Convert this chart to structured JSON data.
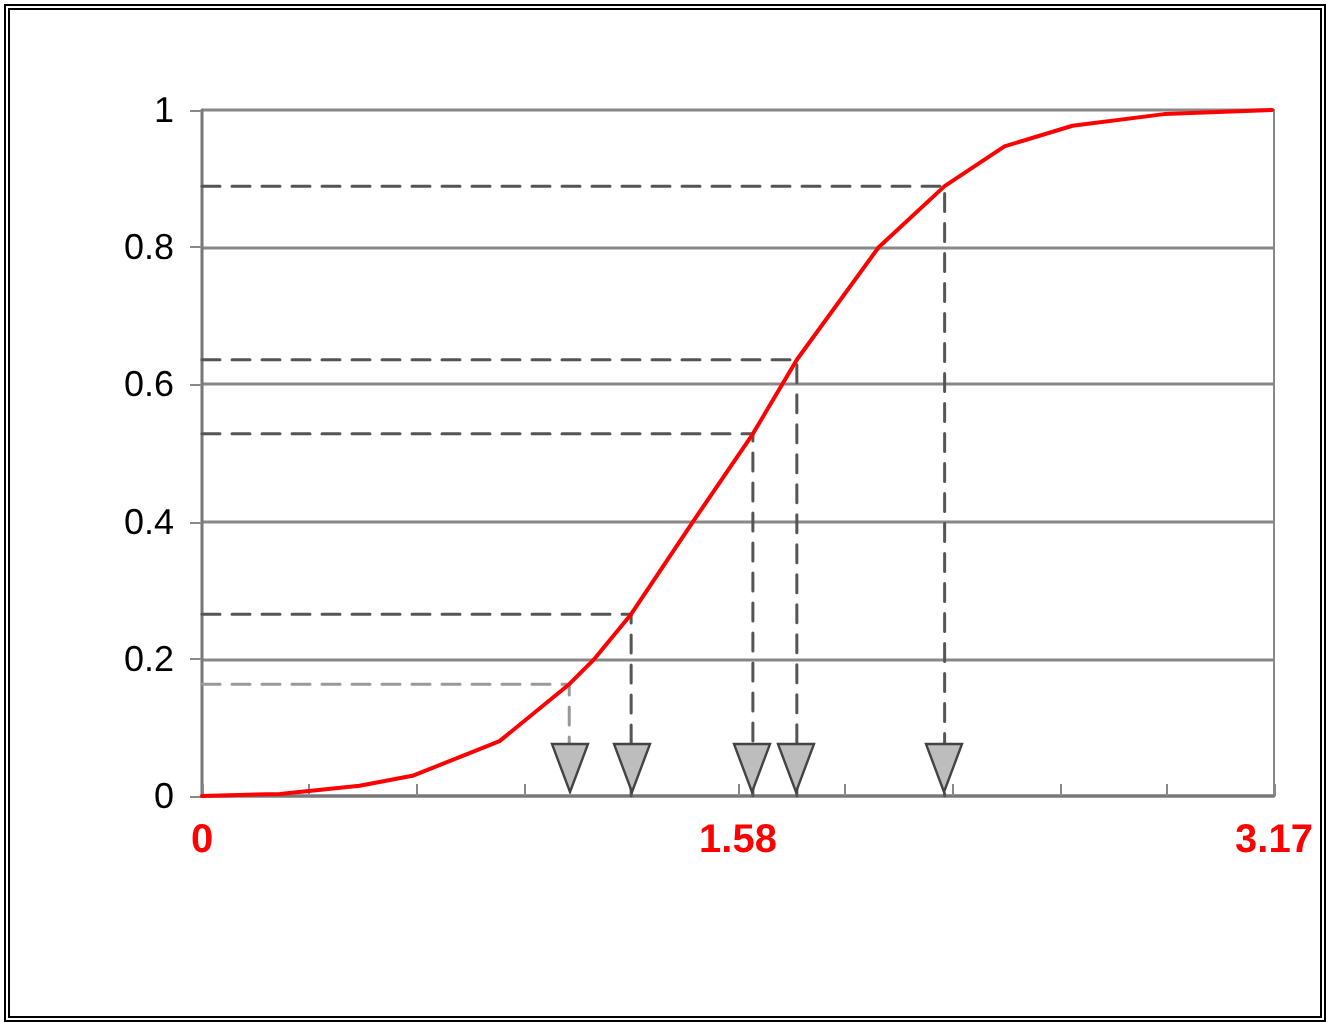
{
  "chart_data": {
    "type": "line",
    "marker": "none",
    "grid": "y",
    "xlim": [
      0,
      3.17
    ],
    "xticks": [
      0,
      {
        "value": 0.317,
        "label": null
      },
      {
        "value": 0.634,
        "label": null
      },
      {
        "value": 0.951,
        "label": null
      },
      {
        "value": 1.268,
        "label": null
      },
      {
        "value": 1.585,
        "label": "1.58"
      },
      {
        "value": 1.902,
        "label": null
      },
      {
        "value": 2.219,
        "label": null
      },
      {
        "value": 2.536,
        "label": null
      },
      {
        "value": 2.853,
        "label": null
      },
      3.17
    ],
    "ylim": [
      0,
      1
    ],
    "yticks": [
      0,
      0.2,
      0.4,
      0.6,
      0.8,
      1
    ],
    "series": [
      {
        "color": "#ff0000",
        "line_style": "solid",
        "x": [
          0,
          0.23,
          0.466,
          0.626,
          0.88,
          1.086,
          1.157,
          1.269,
          1.452,
          1.629,
          1.759,
          2.001,
          2.196,
          2.373,
          2.574,
          2.845,
          3.164
        ],
        "values": [
          0,
          0.003,
          0.015,
          0.03,
          0.08,
          0.163,
          0.198,
          0.265,
          0.4,
          0.528,
          0.636,
          0.8,
          0.889,
          0.947,
          0.977,
          0.994,
          1
        ]
      },
      {
        "color": "#999999",
        "line_style": "dashed",
        "x": [
          0,
          1.086,
          1.086
        ],
        "values": [
          0.163,
          0.163,
          0
        ]
      },
      {
        "color": "#555555",
        "line_style": "dashed",
        "x": [
          0,
          1.269,
          1.269
        ],
        "values": [
          0.265,
          0.265,
          0
        ]
      },
      {
        "color": "#555555",
        "line_style": "dashed",
        "x": [
          0,
          1.629,
          1.629
        ],
        "values": [
          0.528,
          0.528,
          0
        ]
      },
      {
        "color": "#555555",
        "line_style": "dashed",
        "x": [
          0,
          1.759,
          1.759
        ],
        "values": [
          0.636,
          0.636,
          0
        ]
      },
      {
        "color": "#555555",
        "line_style": "dashed",
        "x": [
          0,
          2.196,
          2.196
        ],
        "values": [
          0.889,
          0.889,
          0
        ]
      }
    ]
  }
}
